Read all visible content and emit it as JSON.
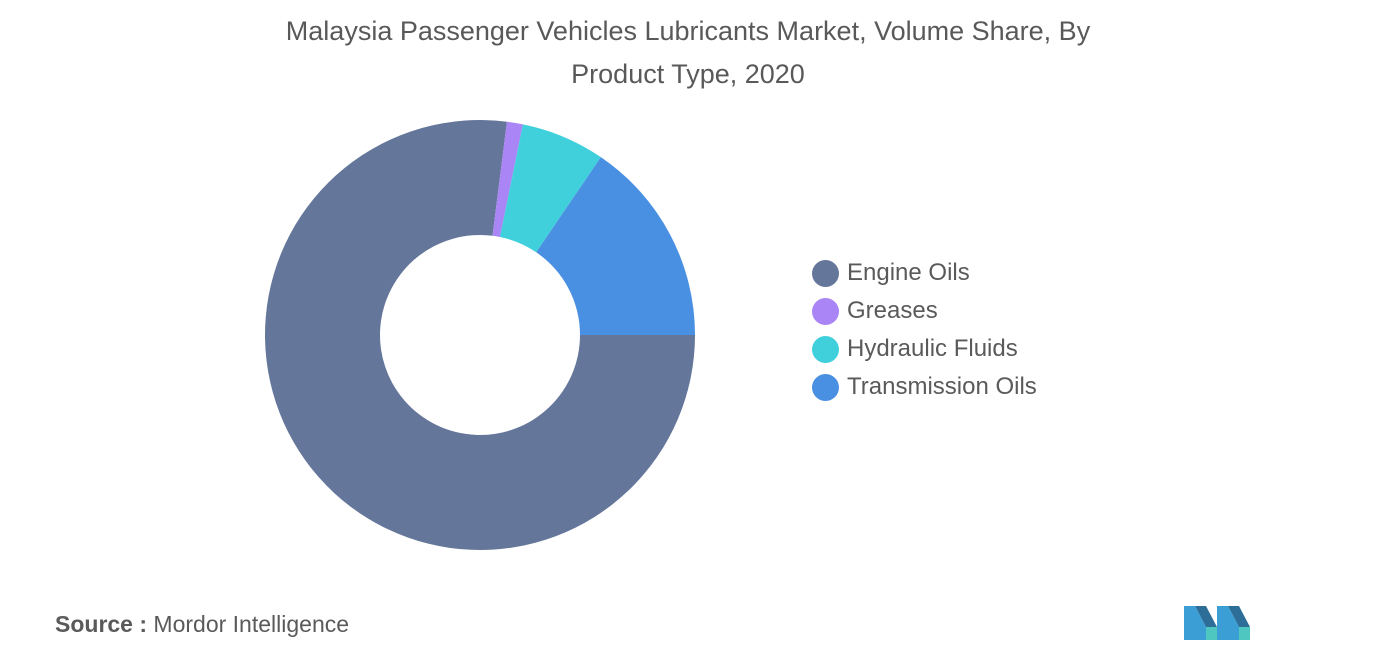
{
  "title_line1": "Malaysia Passenger Vehicles Lubricants Market, Volume Share, By",
  "title_line2": "Product Type, 2020",
  "source_label": "Source :",
  "source_value": "Mordor Intelligence",
  "logo_icon": "mordor-intelligence-logo",
  "chart_data": {
    "type": "pie",
    "variant": "donut",
    "title": "Malaysia Passenger Vehicles Lubricants Market, Volume Share, By Product Type, 2020",
    "legend_position": "right",
    "series": [
      {
        "name": "Engine Oils",
        "value": 77.0,
        "color": "#647699"
      },
      {
        "name": "Greases",
        "value": 1.2,
        "color": "#a985f5"
      },
      {
        "name": "Hydraulic Fluids",
        "value": 6.3,
        "color": "#40d0dc"
      },
      {
        "name": "Transmission Oils",
        "value": 15.5,
        "color": "#4a90e2"
      }
    ]
  }
}
